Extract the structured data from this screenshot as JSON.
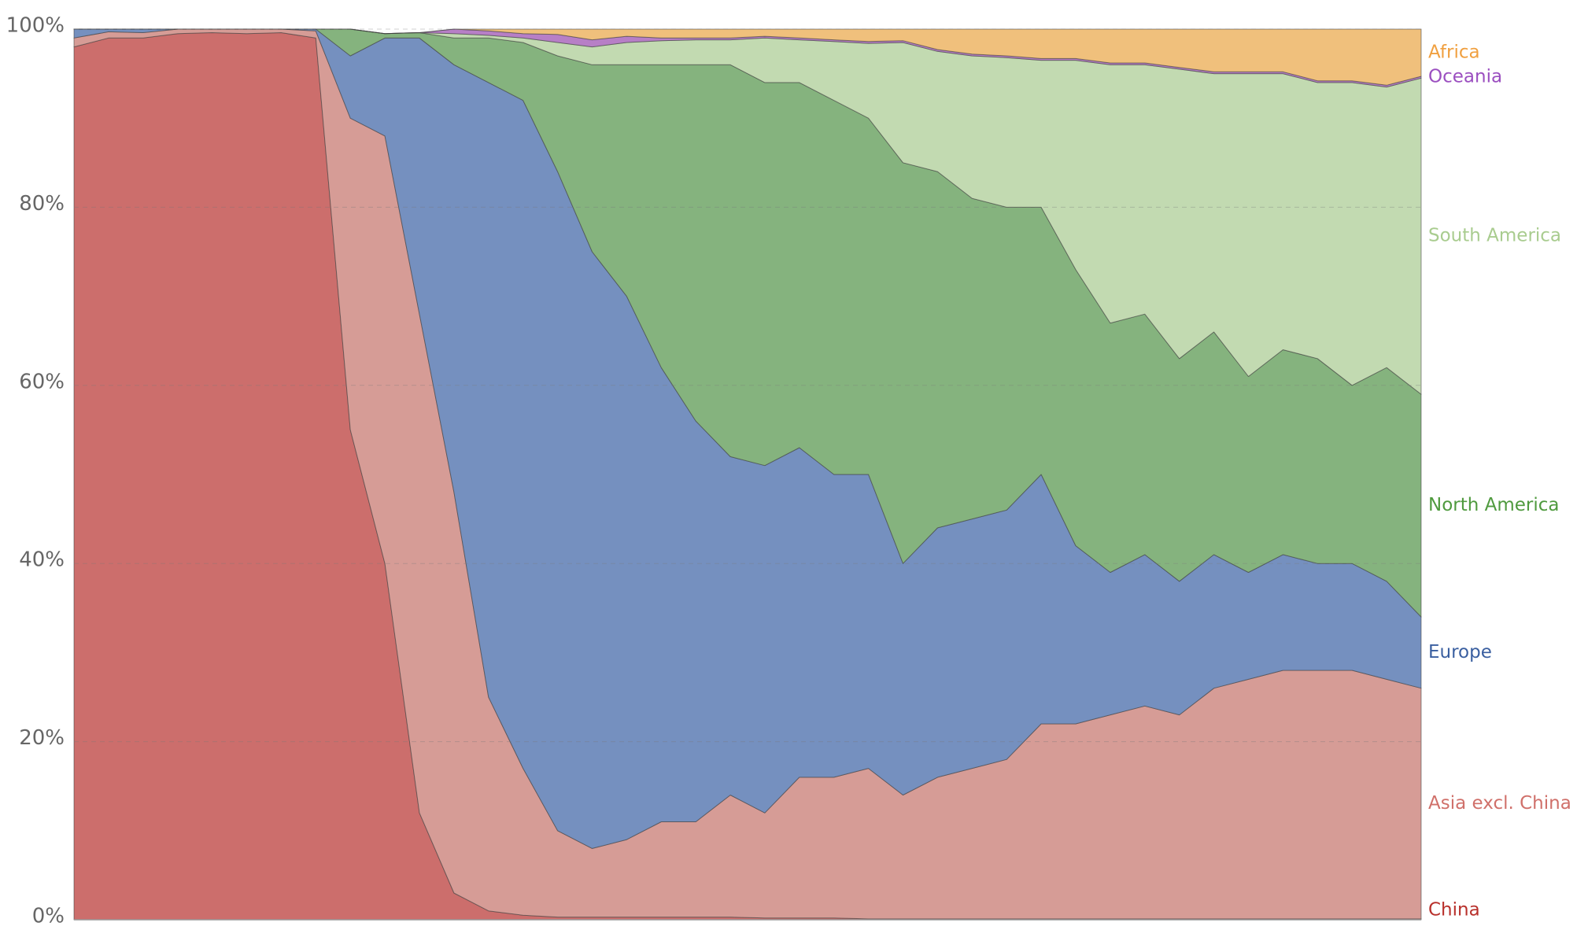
{
  "chart_data": {
    "type": "stacked-area",
    "categories": [
      null,
      null,
      null,
      null,
      null,
      null,
      null,
      null,
      null,
      null,
      null,
      null,
      null,
      null,
      null,
      null,
      null,
      null,
      null,
      null,
      null,
      null,
      null,
      null,
      null,
      null,
      null,
      null,
      null,
      null,
      null,
      null,
      null,
      null,
      null,
      null,
      null,
      null,
      null,
      null
    ],
    "series": [
      {
        "name": "China",
        "color": "#cc6e6c",
        "label_color": "#b8302b",
        "values": [
          98,
          99,
          99,
          99.5,
          99.6,
          99.5,
          99.6,
          99,
          55,
          40,
          12,
          3,
          1,
          0.5,
          0.3,
          0.3,
          0.3,
          0.3,
          0.3,
          0.3,
          0.2,
          0.2,
          0.2,
          0.1,
          0.1,
          0.1,
          0.1,
          0.1,
          0.1,
          0.1,
          0.1,
          0.1,
          0.1,
          0.1,
          0.1,
          0.1,
          0.1,
          0.1,
          0.1,
          0.1
        ]
      },
      {
        "name": "Asia excl. China",
        "color": "#d69c96",
        "label_color": "#d0706a",
        "values": [
          1,
          0.7,
          0.6,
          0.5,
          0.4,
          0.5,
          0.4,
          0.8,
          35,
          48,
          56,
          45,
          24,
          16.5,
          9.7,
          7.7,
          8.7,
          10.7,
          10.7,
          13.7,
          11.8,
          15.8,
          15.8,
          16.9,
          13.9,
          15.9,
          16.9,
          17.9,
          21.9,
          21.9,
          22.9,
          23.9,
          22.9,
          25.9,
          26.9,
          27.9,
          27.9,
          27.9,
          26.9,
          25.9
        ]
      },
      {
        "name": "Europe",
        "color": "#7590bf",
        "label_color": "#3a5fa0",
        "values": [
          1,
          0.3,
          0.4,
          0,
          0,
          0,
          0,
          0.2,
          7,
          11,
          31,
          48,
          69,
          75,
          74,
          67,
          61,
          51,
          45,
          38,
          39,
          37,
          34,
          33,
          26,
          28,
          28,
          28,
          28,
          20,
          16,
          17,
          15,
          15,
          12,
          13,
          12,
          12,
          11,
          8
        ]
      },
      {
        "name": "North America",
        "color": "#85b37e",
        "label_color": "#4f9a3e",
        "values": [
          0,
          0,
          0,
          0,
          0,
          0,
          0,
          0,
          3,
          0.5,
          0.6,
          3,
          5,
          6.5,
          13,
          21,
          26,
          34,
          40,
          44,
          43,
          41,
          42,
          40,
          45,
          40,
          36,
          34,
          30,
          31,
          28,
          27,
          25,
          25,
          22,
          23,
          23,
          20,
          24,
          25
        ]
      },
      {
        "name": "South America",
        "color": "#c2dab1",
        "label_color": "#a9cc8f",
        "values": [
          0,
          0,
          0,
          0,
          0,
          0,
          0,
          0,
          0,
          0,
          0,
          0.5,
          0.3,
          0.5,
          1.5,
          2,
          2.5,
          2.7,
          2.8,
          2.8,
          5,
          4.8,
          6.6,
          8.4,
          13.5,
          13.5,
          16,
          16.8,
          16.5,
          23.5,
          29,
          28,
          32.5,
          29,
          34,
          31,
          31,
          34,
          31.5,
          35.5
        ]
      },
      {
        "name": "Oceania",
        "color": "#b77fc6",
        "label_color": "#9b4fc0",
        "values": [
          0,
          0,
          0,
          0,
          0,
          0,
          0,
          0,
          0,
          0,
          0,
          0.5,
          0.5,
          0.5,
          0.9,
          0.8,
          0.7,
          0.3,
          0.2,
          0.2,
          0.2,
          0.2,
          0.2,
          0.2,
          0.2,
          0.2,
          0.2,
          0.2,
          0.2,
          0.2,
          0.2,
          0.2,
          0.2,
          0.2,
          0.2,
          0.2,
          0.2,
          0.2,
          0.2,
          0.2
        ]
      },
      {
        "name": "Africa",
        "color": "#f0c07c",
        "label_color": "#f0a040",
        "values": [
          0,
          0,
          0,
          0,
          0,
          0,
          0,
          0,
          0,
          0,
          0,
          0,
          0.2,
          0.5,
          0.6,
          1.2,
          0.8,
          1,
          1,
          1,
          0.8,
          1,
          1.2,
          1.4,
          1.3,
          2.3,
          2.8,
          3,
          3.3,
          3.3,
          3.8,
          3.8,
          4.3,
          4.8,
          4.8,
          4.8,
          5.8,
          5.8,
          6.3,
          5.3
        ]
      }
    ],
    "ylim": [
      0,
      100
    ],
    "yticks": [
      {
        "value": 0,
        "label": "0%"
      },
      {
        "value": 20,
        "label": "20%"
      },
      {
        "value": 40,
        "label": "40%"
      },
      {
        "value": 60,
        "label": "60%"
      },
      {
        "value": 80,
        "label": "80%"
      },
      {
        "value": 100,
        "label": "100%"
      }
    ],
    "grid": true
  }
}
